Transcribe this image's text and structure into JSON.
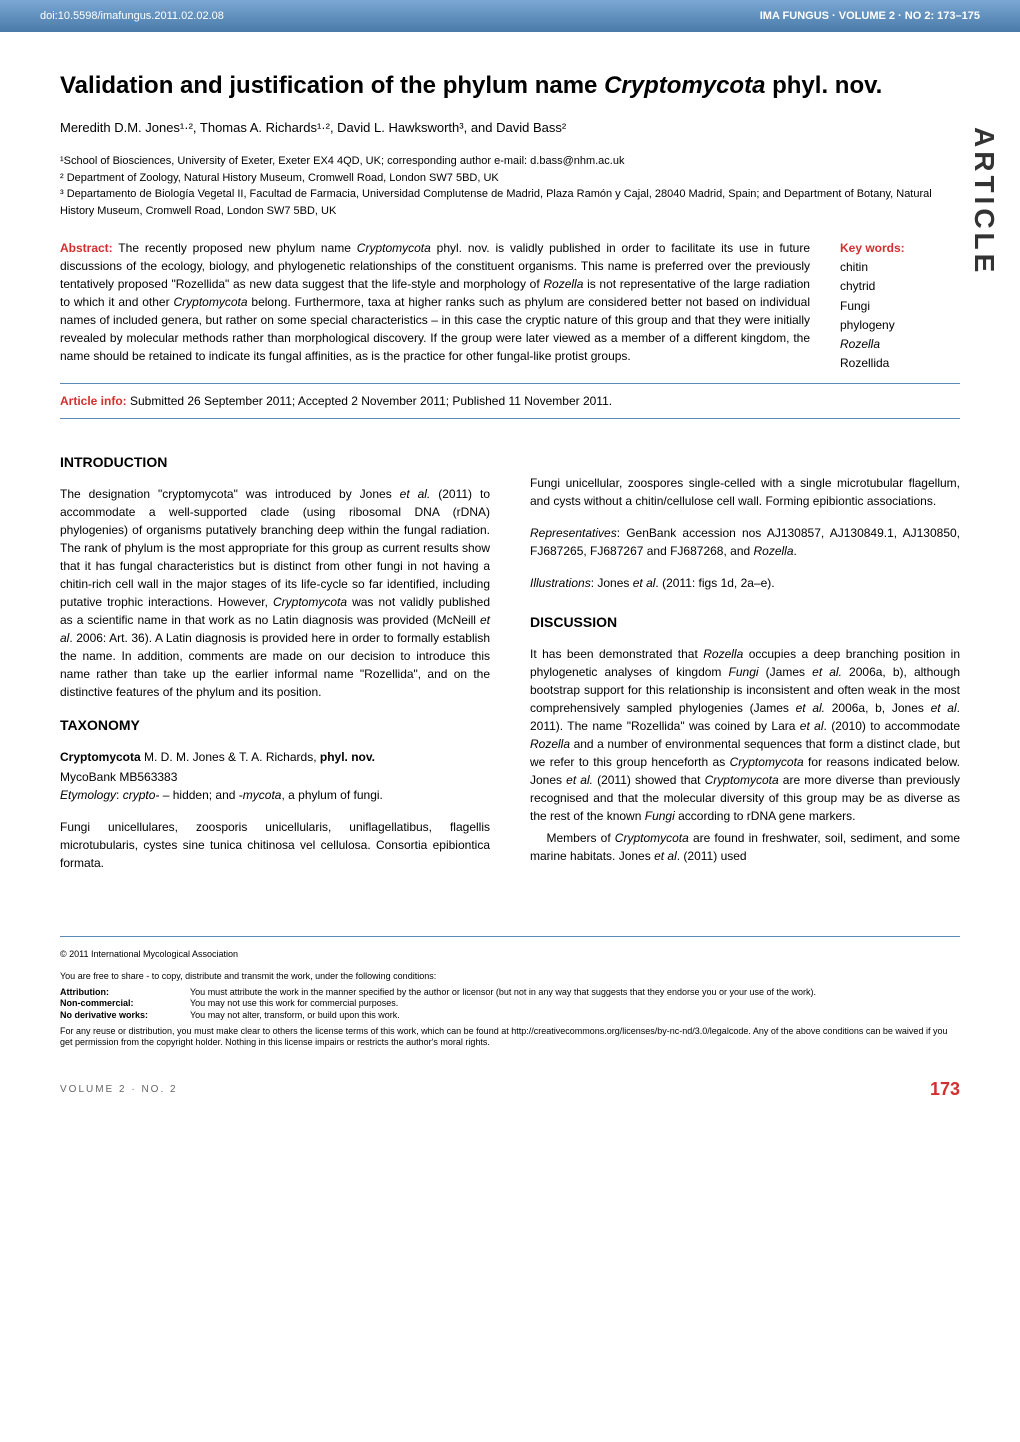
{
  "header": {
    "doi": "doi:10.5598/imafungus.2011.02.02.08",
    "journal_info": "IMA FUNGUS · VOLUME 2 · NO 2: 173–175"
  },
  "side_label": "ARTICLE",
  "title": {
    "prefix": "Validation and justification of the phylum name ",
    "italic": "Cryptomycota",
    "suffix": " phyl. nov."
  },
  "authors": "Meredith D.M. Jones¹·², Thomas A. Richards¹·², David L. Hawksworth³, and David Bass²",
  "affiliations": [
    "¹School of Biosciences, University of Exeter, Exeter EX4 4QD, UK; corresponding author e-mail: d.bass@nhm.ac.uk",
    "² Department of Zoology, Natural History Museum, Cromwell Road, London SW7 5BD, UK",
    "³ Departamento de Biología Vegetal II, Facultad de Farmacia, Universidad Complutense de Madrid, Plaza Ramón y Cajal, 28040 Madrid, Spain; and Department of Botany, Natural History Museum, Cromwell Road, London SW7 5BD, UK"
  ],
  "abstract": {
    "label": "Abstract:",
    "text_parts": [
      " The recently proposed new phylum name ",
      "Cryptomycota",
      " phyl. nov. is validly published in order to facilitate its use in future discussions of the ecology, biology, and phylogenetic relationships of the constituent organisms. This name is preferred over the previously tentatively proposed \"Rozellida\" as new data suggest that the life-style and morphology of ",
      "Rozella",
      " is not representative of the large radiation to which it and other ",
      "Cryptomycota",
      " belong. Furthermore, taxa at higher ranks such as phylum are considered better not based on individual names of included genera, but rather on some special characteristics – in this case the cryptic nature of this group and that they were initially revealed by molecular methods rather than morphological discovery. If the group were later viewed as a member of a different kingdom, the name should be retained to indicate its fungal affinities, as is the practice for other fungal-like protist groups."
    ]
  },
  "keywords": {
    "label": "Key words:",
    "items": [
      "chitin",
      "chytrid",
      "Fungi",
      "phylogeny",
      "Rozella",
      "Rozellida"
    ],
    "italic_items": [
      4
    ]
  },
  "article_info": {
    "label": "Article info:",
    "text": " Submitted 26 September 2011; Accepted 2 November 2011; Published 11 November 2011."
  },
  "sections": {
    "introduction": {
      "heading": "INTRODUCTION",
      "html": "The designation \"cryptomycota\" was introduced by Jones <span class=\"italic\">et al.</span> (2011) to accommodate a well-supported clade (using ribosomal DNA (rDNA) phylogenies) of organisms putatively branching deep within the fungal radiation. The rank of phylum is the most appropriate for this group as current results show that it has fungal characteristics but is distinct from other fungi in not having a chitin-rich cell wall in the major stages of its life-cycle so far identified, including putative trophic interactions. However, <span class=\"italic\">Cryptomycota</span> was not validly published as a scientific name in that work as no Latin diagnosis was provided (McNeill <span class=\"italic\">et al</span>. 2006: Art. 36). A Latin diagnosis is provided here in order to formally establish the name. In addition, comments are made on our decision to introduce this name rather than take up the earlier informal name \"Rozellida\", and on the distinctive features of the phylum and its position."
    },
    "taxonomy": {
      "heading": "TAXONOMY",
      "taxon_html": "<span class=\"bold\">Cryptomycota</span> M. D. M. Jones & T. A. Richards, <span class=\"bold\">phyl. nov.</span>",
      "mycobank": "MycoBank MB563383",
      "etymology_html": "<span class=\"italic\">Etymology</span>: <span class=\"italic\">crypto-</span> – hidden; and -<span class=\"italic\">mycota</span>, a phylum of fungi.",
      "latin": "Fungi unicellulares, zoosporis unicellularis, uniflagellatibus, flagellis microtubularis, cystes sine tunica chitinosa vel cellulosa. Consortia epibiontica formata.",
      "english": "Fungi unicellular, zoospores single-celled with a single microtubular flagellum, and cysts without a chitin/cellulose cell wall. Forming epibiontic associations.",
      "representatives_html": "<span class=\"italic\">Representatives</span>: GenBank accession nos AJ130857, AJ130849.1, AJ130850, FJ687265, FJ687267 and FJ687268, and <span class=\"italic\">Rozella</span>.",
      "illustrations_html": "<span class=\"italic\">Illustrations</span>: Jones <span class=\"italic\">et al</span>. (2011: figs 1d, 2a–e)."
    },
    "discussion": {
      "heading": "DISCUSSION",
      "p1_html": "It has been demonstrated that <span class=\"italic\">Rozella</span> occupies a deep branching position in phylogenetic analyses of kingdom <span class=\"italic\">Fungi</span> (James <span class=\"italic\">et al.</span> 2006a, b), although bootstrap support for this relationship is inconsistent and often weak in the most comprehensively sampled phylogenies (James <span class=\"italic\">et al.</span> 2006a, b, Jones <span class=\"italic\">et al</span>. 2011). The name \"Rozellida\" was coined by Lara <span class=\"italic\">et al</span>. (2010) to accommodate <span class=\"italic\">Rozella</span> and a number of environmental sequences that form a distinct clade, but we refer to this group henceforth as <span class=\"italic\">Cryptomycota</span> for reasons indicated below. Jones <span class=\"italic\">et al.</span> (2011) showed that <span class=\"italic\">Cryptomycota</span> are more diverse than previously recognised and that the molecular diversity of this group may be as diverse as the rest of the known <span class=\"italic\">Fungi</span> according to rDNA gene markers.",
      "p2_html": "&nbsp;&nbsp;&nbsp;&nbsp;Members of <span class=\"italic\">Cryptomycota</span> are found in freshwater, soil, sediment, and some marine habitats. Jones <span class=\"italic\">et al</span>. (2011) used"
    }
  },
  "footer": {
    "copyright": "© 2011 International Mycological Association",
    "license_intro": "You are free to share - to copy, distribute and transmit the work, under the following conditions:",
    "license_terms": [
      {
        "term": "Attribution:",
        "desc": "You must attribute the work in the manner specified by the author or licensor (but not in any way that suggests that they endorse you or your use of the work)."
      },
      {
        "term": "Non-commercial:",
        "desc": "You may not use this work for commercial purposes."
      },
      {
        "term": "No derivative works:",
        "desc": "You may not alter, transform, or build upon this work."
      }
    ],
    "license_footer": "For any reuse or distribution, you must make clear to others the license terms of this work, which can be found at http://creativecommons.org/licenses/by-nc-nd/3.0/legalcode. Any of the above conditions can be waived if you get permission from the copyright holder. Nothing in this license impairs or restricts the author's moral rights."
  },
  "page_footer": {
    "volume": "VOLUME 2 · NO. 2",
    "page": "173"
  },
  "colors": {
    "header_gradient_top": "#7ba8d4",
    "header_gradient_bottom": "#4a7aa8",
    "accent_red": "#d32f2f",
    "divider_blue": "#5a8bb8"
  }
}
